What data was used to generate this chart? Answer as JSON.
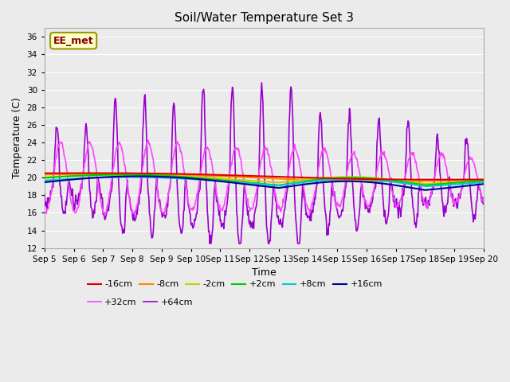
{
  "title": "Soil/Water Temperature Set 3",
  "xlabel": "Time",
  "ylabel": "Temperature (C)",
  "ylim": [
    12,
    37
  ],
  "yticks": [
    12,
    14,
    16,
    18,
    20,
    22,
    24,
    26,
    28,
    30,
    32,
    34,
    36
  ],
  "xtick_labels": [
    "Sep 5",
    "Sep 6",
    "Sep 7",
    "Sep 8",
    "Sep 9",
    "Sep 10",
    "Sep 11",
    "Sep 12",
    "Sep 13",
    "Sep 14",
    "Sep 15",
    "Sep 16",
    "Sep 17",
    "Sep 18",
    "Sep 19",
    "Sep 20"
  ],
  "series": {
    "-16cm": {
      "color": "#dd0000",
      "linewidth": 1.5,
      "zorder": 6
    },
    "-8cm": {
      "color": "#ff8800",
      "linewidth": 1.5,
      "zorder": 5
    },
    "-2cm": {
      "color": "#cccc00",
      "linewidth": 1.5,
      "zorder": 5
    },
    "+2cm": {
      "color": "#00cc00",
      "linewidth": 1.5,
      "zorder": 5
    },
    "+8cm": {
      "color": "#00cccc",
      "linewidth": 1.5,
      "zorder": 5
    },
    "+16cm": {
      "color": "#000099",
      "linewidth": 1.5,
      "zorder": 5
    },
    "+32cm": {
      "color": "#ff44ff",
      "linewidth": 1.2,
      "zorder": 3
    },
    "+64cm": {
      "color": "#9900cc",
      "linewidth": 1.2,
      "zorder": 3
    }
  },
  "annotation_box": {
    "text": "EE_met",
    "fontsize": 9,
    "text_color": "#880000",
    "bg_color": "#ffffcc",
    "edge_color": "#999900"
  },
  "bg_color": "#ebebeb",
  "grid_color": "#ffffff"
}
